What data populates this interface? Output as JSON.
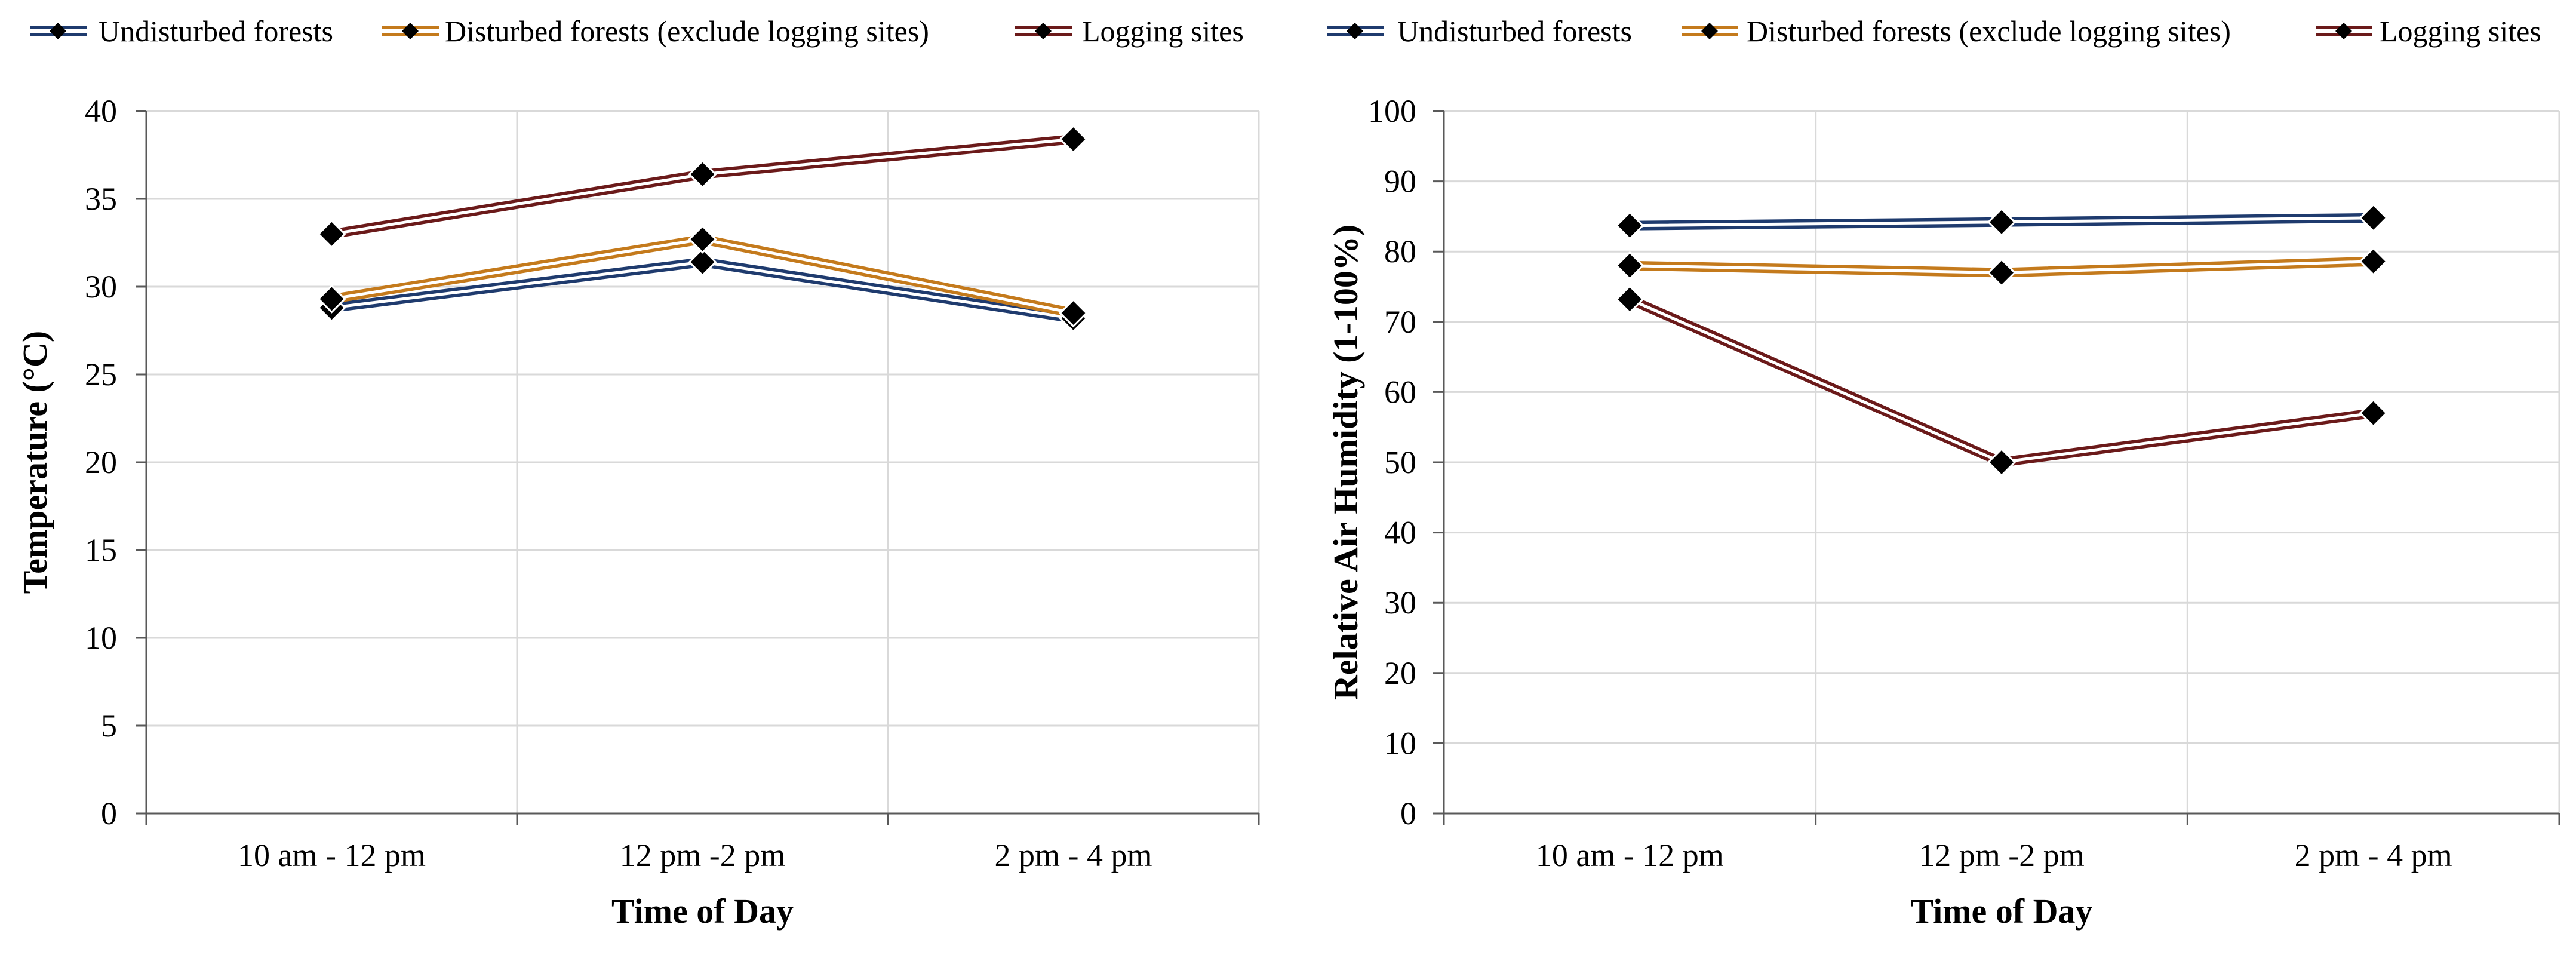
{
  "colors": {
    "undisturbed": "#1f3b6e",
    "disturbed": "#c47a1c",
    "logging": "#6b1a1a",
    "marker": "#000000",
    "grid": "#d9d9d9",
    "axis": "#595959",
    "text": "#000000"
  },
  "chart_data": [
    {
      "type": "line",
      "legend": [
        "Undisturbed forests",
        "Disturbed forests (exclude logging sites)",
        "Logging sites"
      ],
      "legend_position": "top",
      "categories": [
        "10 am - 12 pm",
        "12 pm -2 pm",
        "2 pm - 4 pm"
      ],
      "xlabel": "Time of Day",
      "ylabel": "Temperature (°C)",
      "ylim": [
        0,
        40
      ],
      "yticks": [
        0,
        5,
        10,
        15,
        20,
        25,
        30,
        35,
        40
      ],
      "grid": true,
      "series": [
        {
          "name": "Undisturbed forests",
          "key": "undisturbed",
          "values": [
            28.8,
            31.4,
            28.2
          ]
        },
        {
          "name": "Disturbed forests (exclude logging sites)",
          "key": "disturbed",
          "values": [
            29.3,
            32.7,
            28.5
          ]
        },
        {
          "name": "Logging sites",
          "key": "logging",
          "values": [
            33.0,
            36.4,
            38.4
          ]
        }
      ]
    },
    {
      "type": "line",
      "legend": [
        "Undisturbed forests",
        "Disturbed forests (exclude logging sites)",
        "Logging sites"
      ],
      "legend_position": "top",
      "categories": [
        "10 am - 12 pm",
        "12 pm -2 pm",
        "2 pm - 4 pm"
      ],
      "xlabel": "Time of Day",
      "ylabel": "Relative Air Humidity (1-100%)",
      "ylim": [
        0,
        100
      ],
      "yticks": [
        0,
        10,
        20,
        30,
        40,
        50,
        60,
        70,
        80,
        90,
        100
      ],
      "grid": true,
      "series": [
        {
          "name": "Undisturbed forests",
          "key": "undisturbed",
          "values": [
            83.7,
            84.2,
            84.8
          ]
        },
        {
          "name": "Disturbed forests (exclude logging sites)",
          "key": "disturbed",
          "values": [
            78.0,
            77.0,
            78.6
          ]
        },
        {
          "name": "Logging sites",
          "key": "logging",
          "values": [
            73.2,
            50.0,
            57.0
          ]
        }
      ]
    }
  ]
}
